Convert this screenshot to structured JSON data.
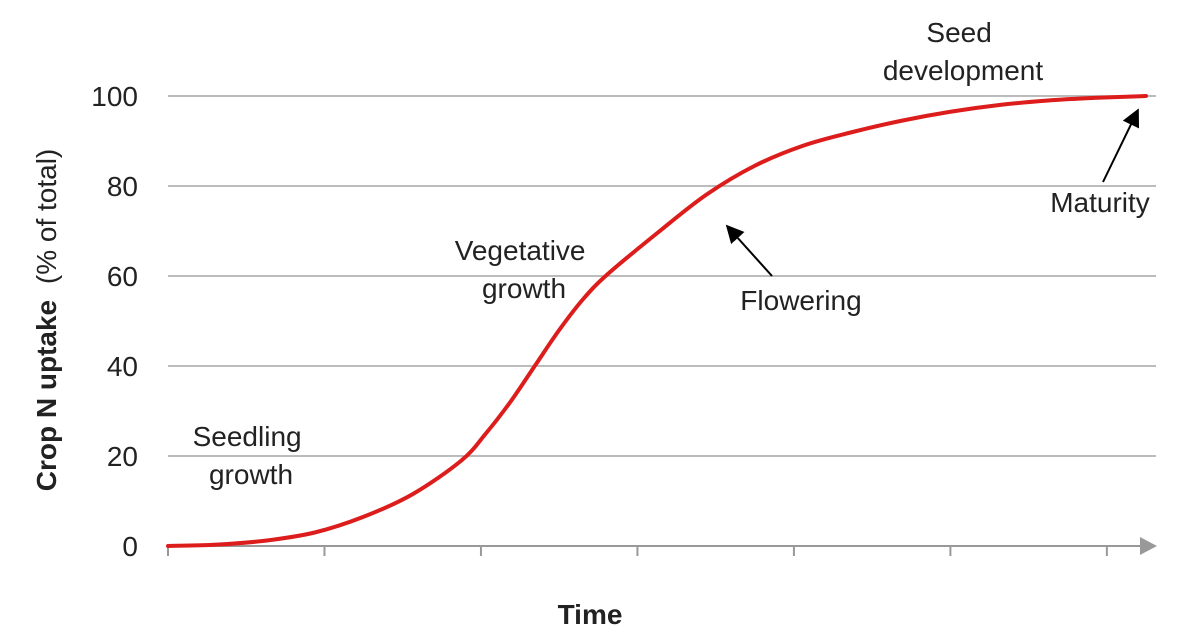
{
  "chart_data": {
    "type": "line",
    "title": "",
    "xlabel": "Time",
    "ylabel": "Crop N uptake",
    "ylabel_unit": "(% of total)",
    "ylim": [
      0,
      100
    ],
    "xlim": [
      0,
      10
    ],
    "yticks": [
      "0",
      "20",
      "40",
      "60",
      "80",
      "100"
    ],
    "ytick_values": [
      0,
      20,
      40,
      60,
      80,
      100
    ],
    "xtick_values": [
      0,
      1.6,
      3.2,
      4.8,
      6.4,
      8.0,
      9.6
    ],
    "grid": true,
    "colors": {
      "line": "#dd1c1c",
      "grid": "#a6a6a6",
      "axis": "#999999",
      "text": "#222222"
    },
    "series": [
      {
        "name": "",
        "x": [
          0,
          0.5,
          1,
          1.5,
          2,
          2.5,
          3,
          3.25,
          3.5,
          3.75,
          4,
          4.25,
          4.5,
          5,
          5.5,
          6,
          6.5,
          7,
          7.5,
          8,
          8.5,
          9,
          9.5,
          10
        ],
        "y": [
          0,
          0.3,
          1.2,
          3,
          6.5,
          11.5,
          19,
          25,
          32,
          40,
          48,
          55,
          60.5,
          69.5,
          78,
          84.5,
          89,
          92,
          94.5,
          96.5,
          98,
          99,
          99.6,
          100
        ]
      }
    ],
    "annotations": {
      "seedling": [
        "Seedling",
        "growth"
      ],
      "vegetative": [
        "Vegetative",
        "growth"
      ],
      "flowering": "Flowering",
      "seed": [
        "Seed",
        "development"
      ],
      "maturity": "Maturity"
    }
  }
}
